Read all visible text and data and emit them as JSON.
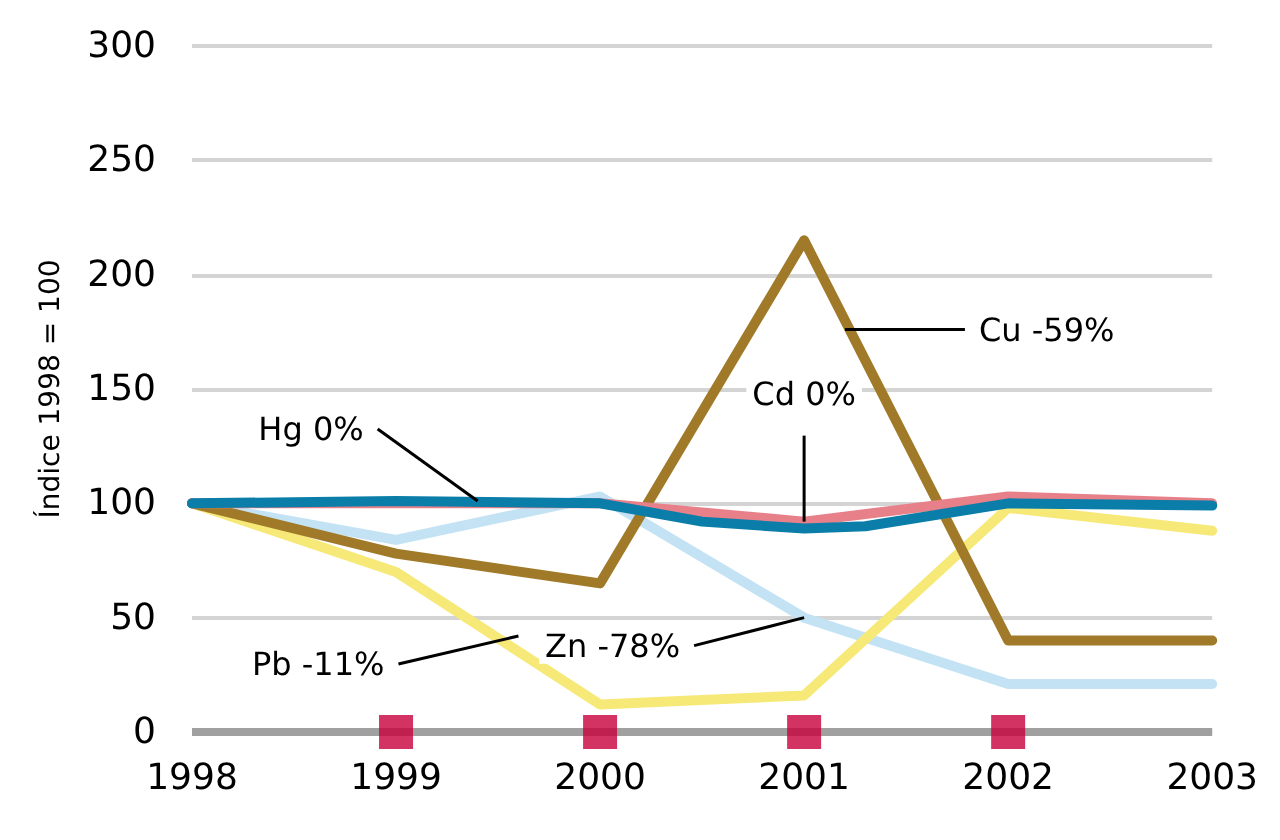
{
  "chart_data": {
    "type": "line",
    "ylabel": "Índice 1998 = 100",
    "x": [
      1998,
      1999,
      2000,
      2001,
      2002,
      2003
    ],
    "xlim": [
      1998,
      2003
    ],
    "xticks": [
      1998,
      1999,
      2000,
      2001,
      2002,
      2003
    ],
    "ylim": [
      0,
      300
    ],
    "yticks": [
      0,
      50,
      100,
      150,
      200,
      250,
      300
    ],
    "grid": "y",
    "marker": "none",
    "line_style": "solid",
    "series": [
      {
        "color": "#c3e3f5",
        "values": [
          100,
          84,
          103,
          50,
          21,
          21
        ]
      },
      {
        "color": "#f7e978",
        "values": [
          100,
          70,
          12,
          16,
          98,
          88
        ]
      },
      {
        "color": "#a07a28",
        "values": [
          100,
          78,
          65,
          215,
          40,
          40
        ]
      },
      {
        "color": "#e8808a",
        "values": [
          100,
          100,
          100,
          92,
          103,
          100
        ]
      },
      {
        "color": "#0a7ea8",
        "x": [
          1998,
          1999,
          2000,
          2000.5,
          2001,
          2001.3,
          2002,
          2003
        ],
        "values": [
          100,
          101,
          100,
          92,
          89,
          90,
          100,
          99
        ]
      },
      {
        "type": "scatter",
        "marker": "square",
        "color": "#c8003c",
        "x": [
          1999,
          2000,
          2001,
          2002
        ],
        "values": [
          0,
          0,
          0,
          0
        ]
      }
    ],
    "annotations": [
      {
        "text": "Hg 0%",
        "x": 1999.4,
        "y": 101
      },
      {
        "text": "Cd 0%",
        "x": 2001,
        "y": 92
      },
      {
        "text": "Cu -59%",
        "x": 2001.2,
        "y": 176
      },
      {
        "text": "Zn -78%",
        "x": 2001,
        "y": 50
      },
      {
        "text": "Pb -11%",
        "x": 1999.6,
        "y": 42
      }
    ]
  }
}
